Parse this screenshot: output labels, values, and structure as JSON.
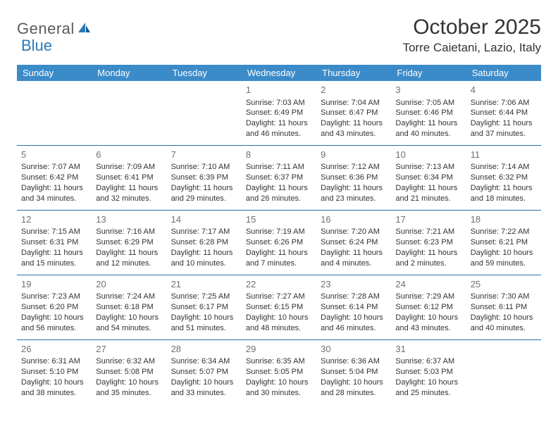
{
  "logo": {
    "text1": "General",
    "text2": "Blue"
  },
  "title": "October 2025",
  "location": "Torre Caietani, Lazio, Italy",
  "header_bg": "#3b8bc9",
  "row_border": "#2a6fa5",
  "weekdays": [
    "Sunday",
    "Monday",
    "Tuesday",
    "Wednesday",
    "Thursday",
    "Friday",
    "Saturday"
  ],
  "weeks": [
    [
      null,
      null,
      null,
      {
        "n": "1",
        "sr": "7:03 AM",
        "ss": "6:49 PM",
        "dh": "11",
        "dm": "46"
      },
      {
        "n": "2",
        "sr": "7:04 AM",
        "ss": "6:47 PM",
        "dh": "11",
        "dm": "43"
      },
      {
        "n": "3",
        "sr": "7:05 AM",
        "ss": "6:46 PM",
        "dh": "11",
        "dm": "40"
      },
      {
        "n": "4",
        "sr": "7:06 AM",
        "ss": "6:44 PM",
        "dh": "11",
        "dm": "37"
      }
    ],
    [
      {
        "n": "5",
        "sr": "7:07 AM",
        "ss": "6:42 PM",
        "dh": "11",
        "dm": "34"
      },
      {
        "n": "6",
        "sr": "7:09 AM",
        "ss": "6:41 PM",
        "dh": "11",
        "dm": "32"
      },
      {
        "n": "7",
        "sr": "7:10 AM",
        "ss": "6:39 PM",
        "dh": "11",
        "dm": "29"
      },
      {
        "n": "8",
        "sr": "7:11 AM",
        "ss": "6:37 PM",
        "dh": "11",
        "dm": "26"
      },
      {
        "n": "9",
        "sr": "7:12 AM",
        "ss": "6:36 PM",
        "dh": "11",
        "dm": "23"
      },
      {
        "n": "10",
        "sr": "7:13 AM",
        "ss": "6:34 PM",
        "dh": "11",
        "dm": "21"
      },
      {
        "n": "11",
        "sr": "7:14 AM",
        "ss": "6:32 PM",
        "dh": "11",
        "dm": "18"
      }
    ],
    [
      {
        "n": "12",
        "sr": "7:15 AM",
        "ss": "6:31 PM",
        "dh": "11",
        "dm": "15"
      },
      {
        "n": "13",
        "sr": "7:16 AM",
        "ss": "6:29 PM",
        "dh": "11",
        "dm": "12"
      },
      {
        "n": "14",
        "sr": "7:17 AM",
        "ss": "6:28 PM",
        "dh": "11",
        "dm": "10"
      },
      {
        "n": "15",
        "sr": "7:19 AM",
        "ss": "6:26 PM",
        "dh": "11",
        "dm": "7"
      },
      {
        "n": "16",
        "sr": "7:20 AM",
        "ss": "6:24 PM",
        "dh": "11",
        "dm": "4"
      },
      {
        "n": "17",
        "sr": "7:21 AM",
        "ss": "6:23 PM",
        "dh": "11",
        "dm": "2"
      },
      {
        "n": "18",
        "sr": "7:22 AM",
        "ss": "6:21 PM",
        "dh": "10",
        "dm": "59"
      }
    ],
    [
      {
        "n": "19",
        "sr": "7:23 AM",
        "ss": "6:20 PM",
        "dh": "10",
        "dm": "56"
      },
      {
        "n": "20",
        "sr": "7:24 AM",
        "ss": "6:18 PM",
        "dh": "10",
        "dm": "54"
      },
      {
        "n": "21",
        "sr": "7:25 AM",
        "ss": "6:17 PM",
        "dh": "10",
        "dm": "51"
      },
      {
        "n": "22",
        "sr": "7:27 AM",
        "ss": "6:15 PM",
        "dh": "10",
        "dm": "48"
      },
      {
        "n": "23",
        "sr": "7:28 AM",
        "ss": "6:14 PM",
        "dh": "10",
        "dm": "46"
      },
      {
        "n": "24",
        "sr": "7:29 AM",
        "ss": "6:12 PM",
        "dh": "10",
        "dm": "43"
      },
      {
        "n": "25",
        "sr": "7:30 AM",
        "ss": "6:11 PM",
        "dh": "10",
        "dm": "40"
      }
    ],
    [
      {
        "n": "26",
        "sr": "6:31 AM",
        "ss": "5:10 PM",
        "dh": "10",
        "dm": "38"
      },
      {
        "n": "27",
        "sr": "6:32 AM",
        "ss": "5:08 PM",
        "dh": "10",
        "dm": "35"
      },
      {
        "n": "28",
        "sr": "6:34 AM",
        "ss": "5:07 PM",
        "dh": "10",
        "dm": "33"
      },
      {
        "n": "29",
        "sr": "6:35 AM",
        "ss": "5:05 PM",
        "dh": "10",
        "dm": "30"
      },
      {
        "n": "30",
        "sr": "6:36 AM",
        "ss": "5:04 PM",
        "dh": "10",
        "dm": "28"
      },
      {
        "n": "31",
        "sr": "6:37 AM",
        "ss": "5:03 PM",
        "dh": "10",
        "dm": "25"
      },
      null
    ]
  ],
  "labels": {
    "sunrise": "Sunrise:",
    "sunset": "Sunset:",
    "daylight_pre": "Daylight:",
    "hours": "hours",
    "and": "and",
    "minutes": "minutes."
  }
}
